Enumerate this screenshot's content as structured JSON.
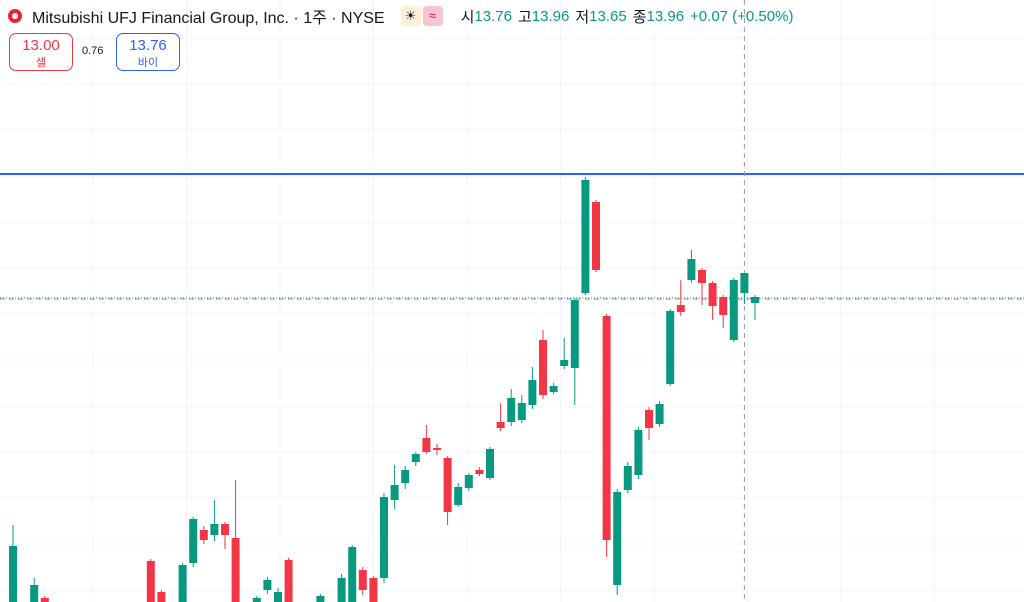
{
  "header": {
    "title": "Mitsubishi UFJ Financial Group, Inc. · 1주 · NYSE",
    "open_label": "시",
    "open": "13.76",
    "high_label": "고",
    "high": "13.96",
    "low_label": "저",
    "low": "13.65",
    "close_label": "종",
    "close": "13.96",
    "change": "+0.07 (+0.50%)"
  },
  "trade": {
    "sell_price": "13.00",
    "sell_label": "셀",
    "spread": "0.76",
    "buy_price": "13.76",
    "buy_label": "바이"
  },
  "chart_data": {
    "type": "candlestick",
    "up_color": "#089981",
    "down_color": "#f23645",
    "ylim": [
      10.67,
      16.69
    ],
    "grid": true,
    "open": [
      10.67,
      null,
      10.67,
      10.71,
      null,
      null,
      null,
      null,
      null,
      null,
      null,
      null,
      null,
      11.08,
      10.77,
      null,
      10.67,
      11.06,
      11.39,
      11.34,
      11.45,
      11.31,
      null,
      10.67,
      10.79,
      10.67,
      11.09,
      null,
      null,
      10.67,
      null,
      10.67,
      10.67,
      10.99,
      10.91,
      10.91,
      11.69,
      11.86,
      12.07,
      12.31,
      12.21,
      12.11,
      11.64,
      11.81,
      11.99,
      11.91,
      12.47,
      12.47,
      12.49,
      12.64,
      13.29,
      12.77,
      13.03,
      13.01,
      13.76,
      14.67,
      13.53,
      10.84,
      11.79,
      11.94,
      12.59,
      12.45,
      12.85,
      13.64,
      13.89,
      13.99,
      13.86,
      13.72,
      13.29,
      13.76,
      13.66
    ],
    "high": [
      11.44,
      null,
      10.91,
      10.73,
      null,
      null,
      null,
      null,
      null,
      null,
      null,
      null,
      null,
      11.1,
      10.79,
      null,
      11.06,
      11.52,
      11.43,
      11.69,
      11.47,
      11.89,
      null,
      10.73,
      10.92,
      10.81,
      11.11,
      null,
      null,
      10.75,
      null,
      10.95,
      11.24,
      11.02,
      10.93,
      11.76,
      12.04,
      12.03,
      12.17,
      12.44,
      12.25,
      12.13,
      11.86,
      11.96,
      12.02,
      12.22,
      12.66,
      12.8,
      12.74,
      13.02,
      13.39,
      12.86,
      13.31,
      13.71,
      14.92,
      14.69,
      13.55,
      11.8,
      12.07,
      12.42,
      12.62,
      12.68,
      13.6,
      13.89,
      14.19,
      14.01,
      13.88,
      13.74,
      13.91,
      13.96,
      13.74
    ],
    "low": [
      10.67,
      null,
      10.67,
      10.67,
      null,
      null,
      null,
      null,
      null,
      null,
      null,
      null,
      null,
      10.67,
      10.67,
      null,
      10.67,
      11.02,
      11.25,
      11.28,
      11.2,
      10.67,
      null,
      10.67,
      10.75,
      10.67,
      10.67,
      null,
      null,
      10.67,
      null,
      10.67,
      10.67,
      10.74,
      10.67,
      10.86,
      11.6,
      11.8,
      12.03,
      12.15,
      12.14,
      11.44,
      11.62,
      11.78,
      11.93,
      11.89,
      12.38,
      12.43,
      12.46,
      12.6,
      12.7,
      12.75,
      13.0,
      12.64,
      13.74,
      13.97,
      11.12,
      10.74,
      11.76,
      11.9,
      12.29,
      12.42,
      12.83,
      13.53,
      13.86,
      13.64,
      13.49,
      13.41,
      13.27,
      13.65,
      13.49
    ],
    "close": [
      11.23,
      null,
      10.84,
      10.67,
      null,
      null,
      null,
      null,
      null,
      null,
      null,
      null,
      null,
      10.67,
      10.67,
      null,
      11.04,
      11.5,
      11.29,
      11.45,
      11.34,
      10.67,
      null,
      10.71,
      10.89,
      10.77,
      10.67,
      null,
      null,
      10.73,
      null,
      10.91,
      11.22,
      10.79,
      10.67,
      11.72,
      11.84,
      11.99,
      12.15,
      12.17,
      12.19,
      11.57,
      11.82,
      11.94,
      11.95,
      12.2,
      12.41,
      12.71,
      12.66,
      12.89,
      12.74,
      12.83,
      13.09,
      13.69,
      14.89,
      13.99,
      11.29,
      11.77,
      12.03,
      12.39,
      12.41,
      12.65,
      13.58,
      13.57,
      14.1,
      13.86,
      13.63,
      13.54,
      13.89,
      13.96,
      13.72
    ],
    "levels": [
      {
        "value": 14.95,
        "color": "#2962ff",
        "style": "solid"
      },
      {
        "value": 13.71,
        "color": "#089981",
        "style": "dotted"
      },
      {
        "value": 13.7,
        "color": "#9598a1",
        "style": "dashed"
      }
    ],
    "crosshair_index": 69
  }
}
